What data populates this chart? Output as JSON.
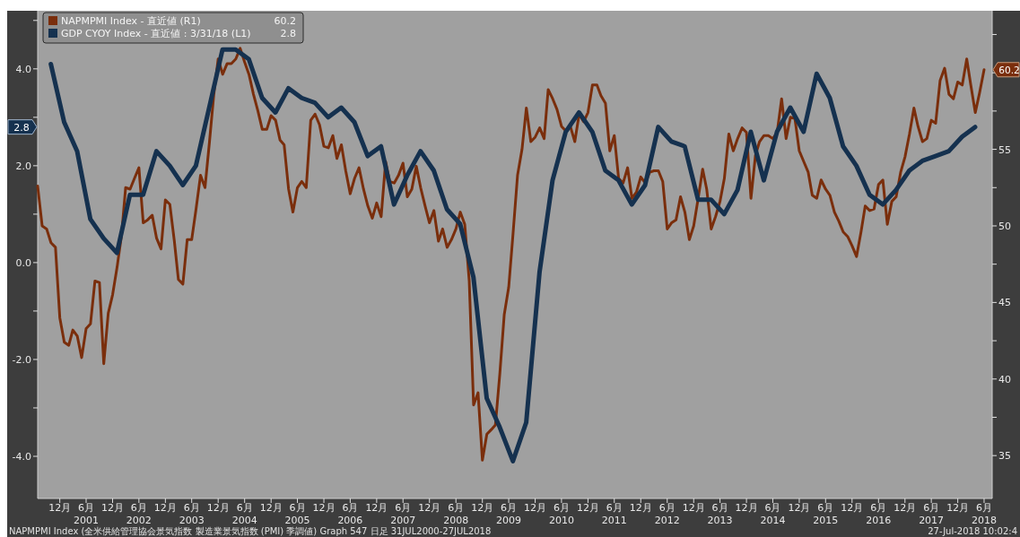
{
  "chart_data": {
    "type": "line",
    "legend": "top left",
    "grid": false,
    "line_style": "solid",
    "marker": "none",
    "series": [
      {
        "name": "NAPMPMI Index - 直近値 (R1)",
        "color": "#7a2e0c",
        "axis": "y2",
        "x": [
          "2000-07",
          "2000-08",
          "2000-09",
          "2000-10",
          "2000-11",
          "2000-12",
          "2001-01",
          "2001-02",
          "2001-03",
          "2001-04",
          "2001-05",
          "2001-06",
          "2001-07",
          "2001-08",
          "2001-09",
          "2001-10",
          "2001-11",
          "2001-12",
          "2002-01",
          "2002-02",
          "2002-03",
          "2002-04",
          "2002-05",
          "2002-06",
          "2002-07",
          "2002-08",
          "2002-09",
          "2002-10",
          "2002-11",
          "2002-12",
          "2003-01",
          "2003-02",
          "2003-03",
          "2003-04",
          "2003-05",
          "2003-06",
          "2003-07",
          "2003-08",
          "2003-09",
          "2003-10",
          "2003-11",
          "2003-12",
          "2004-01",
          "2004-02",
          "2004-03",
          "2004-04",
          "2004-05",
          "2004-06",
          "2004-07",
          "2004-08",
          "2004-09",
          "2004-10",
          "2004-11",
          "2004-12",
          "2005-01",
          "2005-02",
          "2005-03",
          "2005-04",
          "2005-05",
          "2005-06",
          "2005-07",
          "2005-08",
          "2005-09",
          "2005-10",
          "2005-11",
          "2005-12",
          "2006-01",
          "2006-02",
          "2006-03",
          "2006-04",
          "2006-05",
          "2006-06",
          "2006-07",
          "2006-08",
          "2006-09",
          "2006-10",
          "2006-11",
          "2006-12",
          "2007-01",
          "2007-02",
          "2007-03",
          "2007-04",
          "2007-05",
          "2007-06",
          "2007-07",
          "2007-08",
          "2007-09",
          "2007-10",
          "2007-11",
          "2007-12",
          "2008-01",
          "2008-02",
          "2008-03",
          "2008-04",
          "2008-05",
          "2008-06",
          "2008-07",
          "2008-08",
          "2008-09",
          "2008-10",
          "2008-11",
          "2008-12",
          "2009-01",
          "2009-02",
          "2009-03",
          "2009-04",
          "2009-05",
          "2009-06",
          "2009-07",
          "2009-08",
          "2009-09",
          "2009-10",
          "2009-11",
          "2009-12",
          "2010-01",
          "2010-02",
          "2010-03",
          "2010-04",
          "2010-05",
          "2010-06",
          "2010-07",
          "2010-08",
          "2010-09",
          "2010-10",
          "2010-11",
          "2010-12",
          "2011-01",
          "2011-02",
          "2011-03",
          "2011-04",
          "2011-05",
          "2011-06",
          "2011-07",
          "2011-08",
          "2011-09",
          "2011-10",
          "2011-11",
          "2011-12",
          "2012-01",
          "2012-02",
          "2012-03",
          "2012-04",
          "2012-05",
          "2012-06",
          "2012-07",
          "2012-08",
          "2012-09",
          "2012-10",
          "2012-11",
          "2012-12",
          "2013-01",
          "2013-02",
          "2013-03",
          "2013-04",
          "2013-05",
          "2013-06",
          "2013-07",
          "2013-08",
          "2013-09",
          "2013-10",
          "2013-11",
          "2013-12",
          "2014-01",
          "2014-02",
          "2014-03",
          "2014-04",
          "2014-05",
          "2014-06",
          "2014-07",
          "2014-08",
          "2014-09",
          "2014-10",
          "2014-11",
          "2014-12",
          "2015-01",
          "2015-02",
          "2015-03",
          "2015-04",
          "2015-05",
          "2015-06",
          "2015-07",
          "2015-08",
          "2015-09",
          "2015-10",
          "2015-11",
          "2015-12",
          "2016-01",
          "2016-02",
          "2016-03",
          "2016-04",
          "2016-05",
          "2016-06",
          "2016-07",
          "2016-08",
          "2016-09",
          "2016-10",
          "2016-11",
          "2016-12",
          "2017-01",
          "2017-02",
          "2017-03",
          "2017-04",
          "2017-05",
          "2017-06",
          "2017-07",
          "2017-08",
          "2017-09",
          "2017-10",
          "2017-11",
          "2017-12",
          "2018-01",
          "2018-02",
          "2018-03",
          "2018-04",
          "2018-05",
          "2018-06"
        ],
        "values": [
          52.6,
          50.0,
          49.8,
          48.9,
          48.6,
          44.0,
          42.4,
          42.2,
          43.2,
          42.8,
          41.4,
          43.3,
          43.6,
          46.4,
          46.3,
          41.0,
          44.3,
          45.5,
          47.3,
          49.4,
          52.5,
          52.4,
          53.1,
          53.8,
          50.2,
          50.4,
          50.7,
          49.2,
          48.5,
          51.7,
          51.4,
          49.0,
          46.5,
          46.2,
          49.1,
          49.1,
          51.1,
          53.3,
          52.5,
          55.4,
          58.6,
          60.9,
          59.9,
          60.6,
          60.6,
          60.9,
          61.6,
          60.7,
          59.9,
          58.6,
          57.5,
          56.3,
          56.3,
          57.2,
          56.9,
          55.6,
          55.3,
          52.4,
          50.9,
          52.5,
          52.9,
          52.5,
          56.9,
          57.3,
          56.6,
          55.2,
          55.1,
          55.9,
          54.4,
          55.3,
          53.6,
          52.1,
          53.1,
          53.8,
          52.4,
          51.3,
          50.5,
          51.5,
          50.6,
          54.2,
          52.9,
          52.8,
          53.3,
          54.1,
          51.9,
          52.4,
          53.9,
          52.5,
          51.3,
          50.2,
          51.0,
          49.0,
          49.8,
          48.6,
          49.1,
          49.8,
          50.9,
          50.1,
          46.4,
          38.3,
          39.1,
          34.7,
          36.4,
          36.7,
          37.0,
          40.4,
          44.2,
          46.0,
          49.5,
          53.3,
          55.0,
          57.7,
          55.5,
          55.8,
          56.4,
          55.7,
          58.9,
          58.3,
          57.6,
          56.5,
          56.2,
          56.5,
          55.5,
          57.3,
          56.8,
          57.4,
          59.2,
          59.2,
          58.5,
          58.0,
          54.9,
          55.9,
          53.1,
          52.8,
          53.8,
          51.8,
          52.2,
          53.2,
          52.8,
          53.5,
          53.6,
          53.6,
          52.9,
          49.8,
          50.2,
          50.4,
          51.9,
          50.9,
          49.1,
          50.0,
          51.8,
          53.7,
          52.4,
          49.8,
          50.6,
          51.6,
          53.1,
          56.0,
          54.9,
          55.7,
          56.4,
          56.1,
          51.8,
          54.6,
          55.5,
          55.9,
          55.9,
          55.7,
          56.1,
          58.3,
          55.7,
          57.1,
          57.0,
          54.9,
          54.2,
          53.5,
          52.0,
          51.8,
          53.0,
          52.4,
          52.0,
          50.9,
          50.3,
          49.6,
          49.3,
          48.7,
          48.0,
          49.6,
          51.3,
          51.0,
          51.1,
          52.7,
          53.0,
          50.1,
          51.6,
          51.9,
          53.5,
          54.5,
          56.0,
          57.7,
          56.5,
          55.5,
          55.7,
          56.9,
          56.7,
          59.5,
          60.3,
          58.6,
          58.3,
          59.4,
          59.2,
          60.9,
          59.2,
          57.4,
          58.7,
          60.2
        ]
      },
      {
        "name": "GDP CYOY Index - 直近値 : 3/31/18 (L1)",
        "color": "#15314f",
        "axis": "y",
        "x": [
          "2000-09-30",
          "2000-12-31",
          "2001-03-31",
          "2001-06-30",
          "2001-09-30",
          "2001-12-31",
          "2002-03-31",
          "2002-06-30",
          "2002-09-30",
          "2002-12-31",
          "2003-03-31",
          "2003-06-30",
          "2003-09-30",
          "2003-12-31",
          "2004-03-31",
          "2004-06-30",
          "2004-09-30",
          "2004-12-31",
          "2005-03-31",
          "2005-06-30",
          "2005-09-30",
          "2005-12-31",
          "2006-03-31",
          "2006-06-30",
          "2006-09-30",
          "2006-12-31",
          "2007-03-31",
          "2007-06-30",
          "2007-09-30",
          "2007-12-31",
          "2008-03-31",
          "2008-06-30",
          "2008-09-30",
          "2008-12-31",
          "2009-03-31",
          "2009-06-30",
          "2009-09-30",
          "2009-12-31",
          "2010-03-31",
          "2010-06-30",
          "2010-09-30",
          "2010-12-31",
          "2011-03-31",
          "2011-06-30",
          "2011-09-30",
          "2011-12-31",
          "2012-03-31",
          "2012-06-30",
          "2012-09-30",
          "2012-12-31",
          "2013-03-31",
          "2013-06-30",
          "2013-09-30",
          "2013-12-31",
          "2014-03-31",
          "2014-06-30",
          "2014-09-30",
          "2014-12-31",
          "2015-03-31",
          "2015-06-30",
          "2015-09-30",
          "2015-12-31",
          "2016-03-31",
          "2016-06-30",
          "2016-09-30",
          "2016-12-31",
          "2017-03-31",
          "2017-06-30",
          "2017-09-30",
          "2017-12-31",
          "2018-03-31"
        ],
        "values": [
          4.1,
          2.9,
          2.3,
          0.9,
          0.5,
          0.2,
          1.4,
          1.4,
          2.3,
          2.0,
          1.6,
          2.0,
          3.2,
          4.4,
          4.4,
          4.2,
          3.4,
          3.1,
          3.6,
          3.4,
          3.3,
          3.0,
          3.2,
          2.9,
          2.2,
          2.4,
          1.2,
          1.8,
          2.3,
          1.9,
          1.1,
          0.8,
          -0.3,
          -2.8,
          -3.4,
          -4.1,
          -3.3,
          -0.2,
          1.7,
          2.7,
          3.1,
          2.7,
          1.9,
          1.7,
          1.2,
          1.6,
          2.8,
          2.5,
          2.4,
          1.3,
          1.3,
          1.0,
          1.5,
          2.7,
          1.7,
          2.7,
          3.2,
          2.7,
          3.9,
          3.4,
          2.4,
          2.0,
          1.4,
          1.2,
          1.5,
          1.9,
          2.1,
          2.2,
          2.3,
          2.6,
          2.8
        ]
      }
    ],
    "xlim": [
      "2000-07-01",
      "2018-07-27"
    ],
    "xticks": [
      {
        "value": "2000-12-01",
        "label": "12月"
      },
      {
        "value": "2001-06-01",
        "label": "6月\n2001"
      },
      {
        "value": "2001-12-01",
        "label": "12月"
      },
      {
        "value": "2002-06-01",
        "label": "6月\n2002"
      },
      {
        "value": "2002-12-01",
        "label": "12月"
      },
      {
        "value": "2003-06-01",
        "label": "6月\n2003"
      },
      {
        "value": "2003-12-01",
        "label": "12月"
      },
      {
        "value": "2004-06-01",
        "label": "6月\n2004"
      },
      {
        "value": "2004-12-01",
        "label": "12月"
      },
      {
        "value": "2005-06-01",
        "label": "6月\n2005"
      },
      {
        "value": "2005-12-01",
        "label": "12月"
      },
      {
        "value": "2006-06-01",
        "label": "6月\n2006"
      },
      {
        "value": "2006-12-01",
        "label": "12月"
      },
      {
        "value": "2007-06-01",
        "label": "6月\n2007"
      },
      {
        "value": "2007-12-01",
        "label": "12月"
      },
      {
        "value": "2008-06-01",
        "label": "6月\n2008"
      },
      {
        "value": "2008-12-01",
        "label": "12月"
      },
      {
        "value": "2009-06-01",
        "label": "6月\n2009"
      },
      {
        "value": "2009-12-01",
        "label": "12月"
      },
      {
        "value": "2010-06-01",
        "label": "6月\n2010"
      },
      {
        "value": "2010-12-01",
        "label": "12月"
      },
      {
        "value": "2011-06-01",
        "label": "6月\n2011"
      },
      {
        "value": "2011-12-01",
        "label": "12月"
      },
      {
        "value": "2012-06-01",
        "label": "6月\n2012"
      },
      {
        "value": "2012-12-01",
        "label": "12月"
      },
      {
        "value": "2013-06-01",
        "label": "6月\n2013"
      },
      {
        "value": "2013-12-01",
        "label": "12月"
      },
      {
        "value": "2014-06-01",
        "label": "6月\n2014"
      },
      {
        "value": "2014-12-01",
        "label": "12月"
      },
      {
        "value": "2015-06-01",
        "label": "6月\n2015"
      },
      {
        "value": "2015-12-01",
        "label": "12月"
      },
      {
        "value": "2016-06-01",
        "label": "6月\n2016"
      },
      {
        "value": "2016-12-01",
        "label": "12月"
      },
      {
        "value": "2017-06-01",
        "label": "6月\n2017"
      },
      {
        "value": "2017-12-01",
        "label": "12月"
      },
      {
        "value": "2018-06-01",
        "label": "6月\n2018"
      }
    ],
    "ylim": [
      -4.87,
      5.2
    ],
    "yticks": [
      {
        "value": -4,
        "label": "-4.0"
      },
      {
        "value": -3,
        "label": null
      },
      {
        "value": -2,
        "label": "-2.0"
      },
      {
        "value": -1,
        "label": null
      },
      {
        "value": 0,
        "label": "0.0"
      },
      {
        "value": 1,
        "label": null
      },
      {
        "value": 2,
        "label": "2.0"
      },
      {
        "value": 3,
        "label": null
      },
      {
        "value": 4,
        "label": "4.0"
      },
      {
        "value": 5,
        "label": null
      }
    ],
    "y2lim": [
      32.2,
      64.05
    ],
    "y2ticks": [
      {
        "value": 35,
        "label": "35"
      },
      {
        "value": 37.5,
        "label": null
      },
      {
        "value": 40,
        "label": "40"
      },
      {
        "value": 42.5,
        "label": null
      },
      {
        "value": 45,
        "label": "45"
      },
      {
        "value": 47.5,
        "label": null
      },
      {
        "value": 50,
        "label": "50"
      },
      {
        "value": 52.5,
        "label": null
      },
      {
        "value": 55,
        "label": "55"
      },
      {
        "value": 57.5,
        "label": null
      },
      {
        "value": 60,
        "label": null
      },
      {
        "value": 62.5,
        "label": null
      }
    ],
    "annotations": [
      "60.2",
      "2.8",
      "NAPMPMI Index (全米供給管理協会景気指数 製造業景気指数 (PMI) 季調値) Graph 547  日足 31JUL2000-27JUL2018",
      "27-Jul-2018 10:02:4"
    ]
  }
}
